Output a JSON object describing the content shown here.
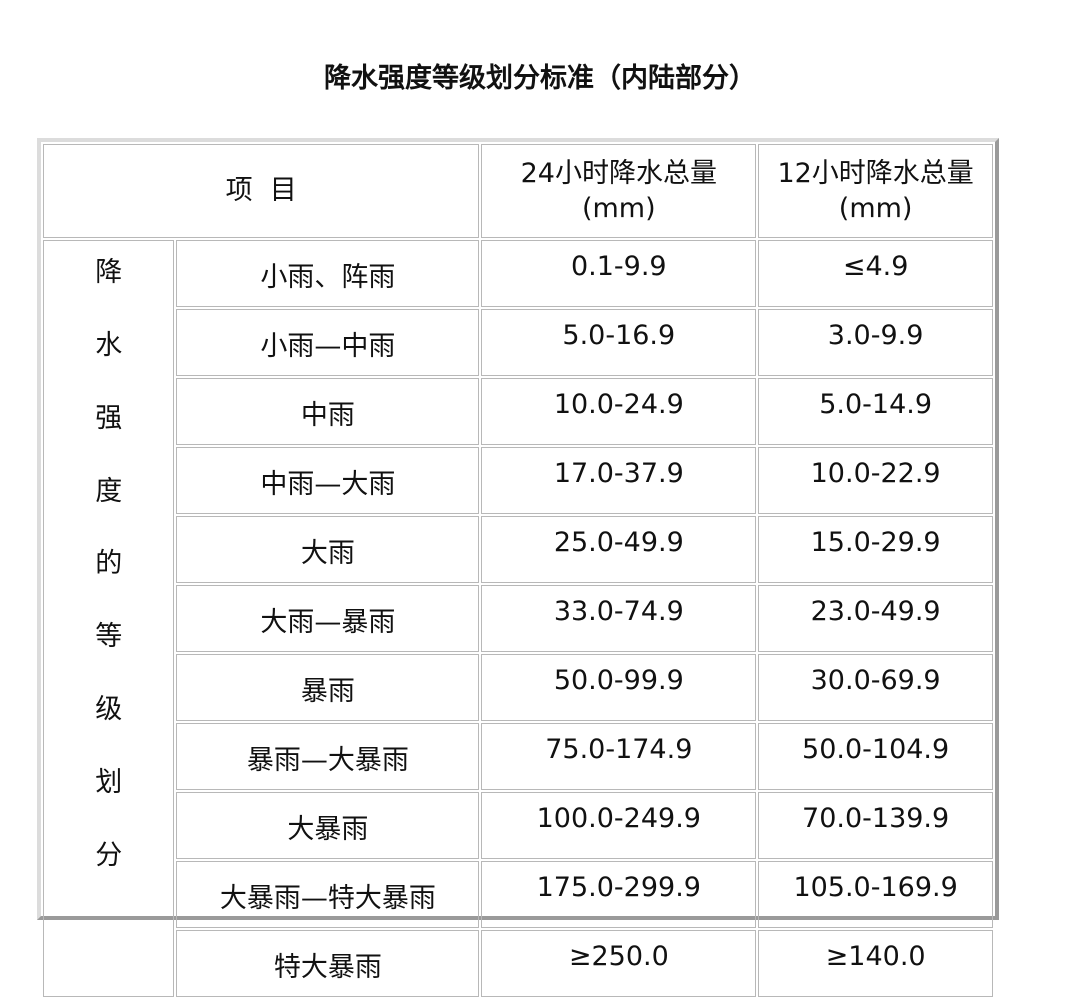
{
  "title": "降水强度等级划分标准（内陆部分）",
  "header": {
    "item": "项  目",
    "col24": "24小时降水总量(mm)",
    "col12": "12小时降水总量(mm)"
  },
  "category_label": [
    "降",
    "水",
    "强",
    "度",
    "的",
    "等",
    "级",
    "划",
    "分"
  ],
  "rows": [
    {
      "name": "小雨、阵雨",
      "h24": "0.1-9.9",
      "h12": "≤4.9"
    },
    {
      "name": "小雨—中雨",
      "h24": "5.0-16.9",
      "h12": "3.0-9.9"
    },
    {
      "name": "中雨",
      "h24": "10.0-24.9",
      "h12": "5.0-14.9"
    },
    {
      "name": "中雨—大雨",
      "h24": "17.0-37.9",
      "h12": "10.0-22.9"
    },
    {
      "name": "大雨",
      "h24": "25.0-49.9",
      "h12": "15.0-29.9"
    },
    {
      "name": "大雨—暴雨",
      "h24": "33.0-74.9",
      "h12": "23.0-49.9"
    },
    {
      "name": "暴雨",
      "h24": "50.0-99.9",
      "h12": "30.0-69.9"
    },
    {
      "name": "暴雨—大暴雨",
      "h24": "75.0-174.9",
      "h12": "50.0-104.9"
    },
    {
      "name": "大暴雨",
      "h24": "100.0-249.9",
      "h12": "70.0-139.9"
    },
    {
      "name": "大暴雨—特大暴雨",
      "h24": "175.0-299.9",
      "h12": "105.0-169.9"
    },
    {
      "name": "特大暴雨",
      "h24": "≥250.0",
      "h12": "≥140.0"
    }
  ]
}
